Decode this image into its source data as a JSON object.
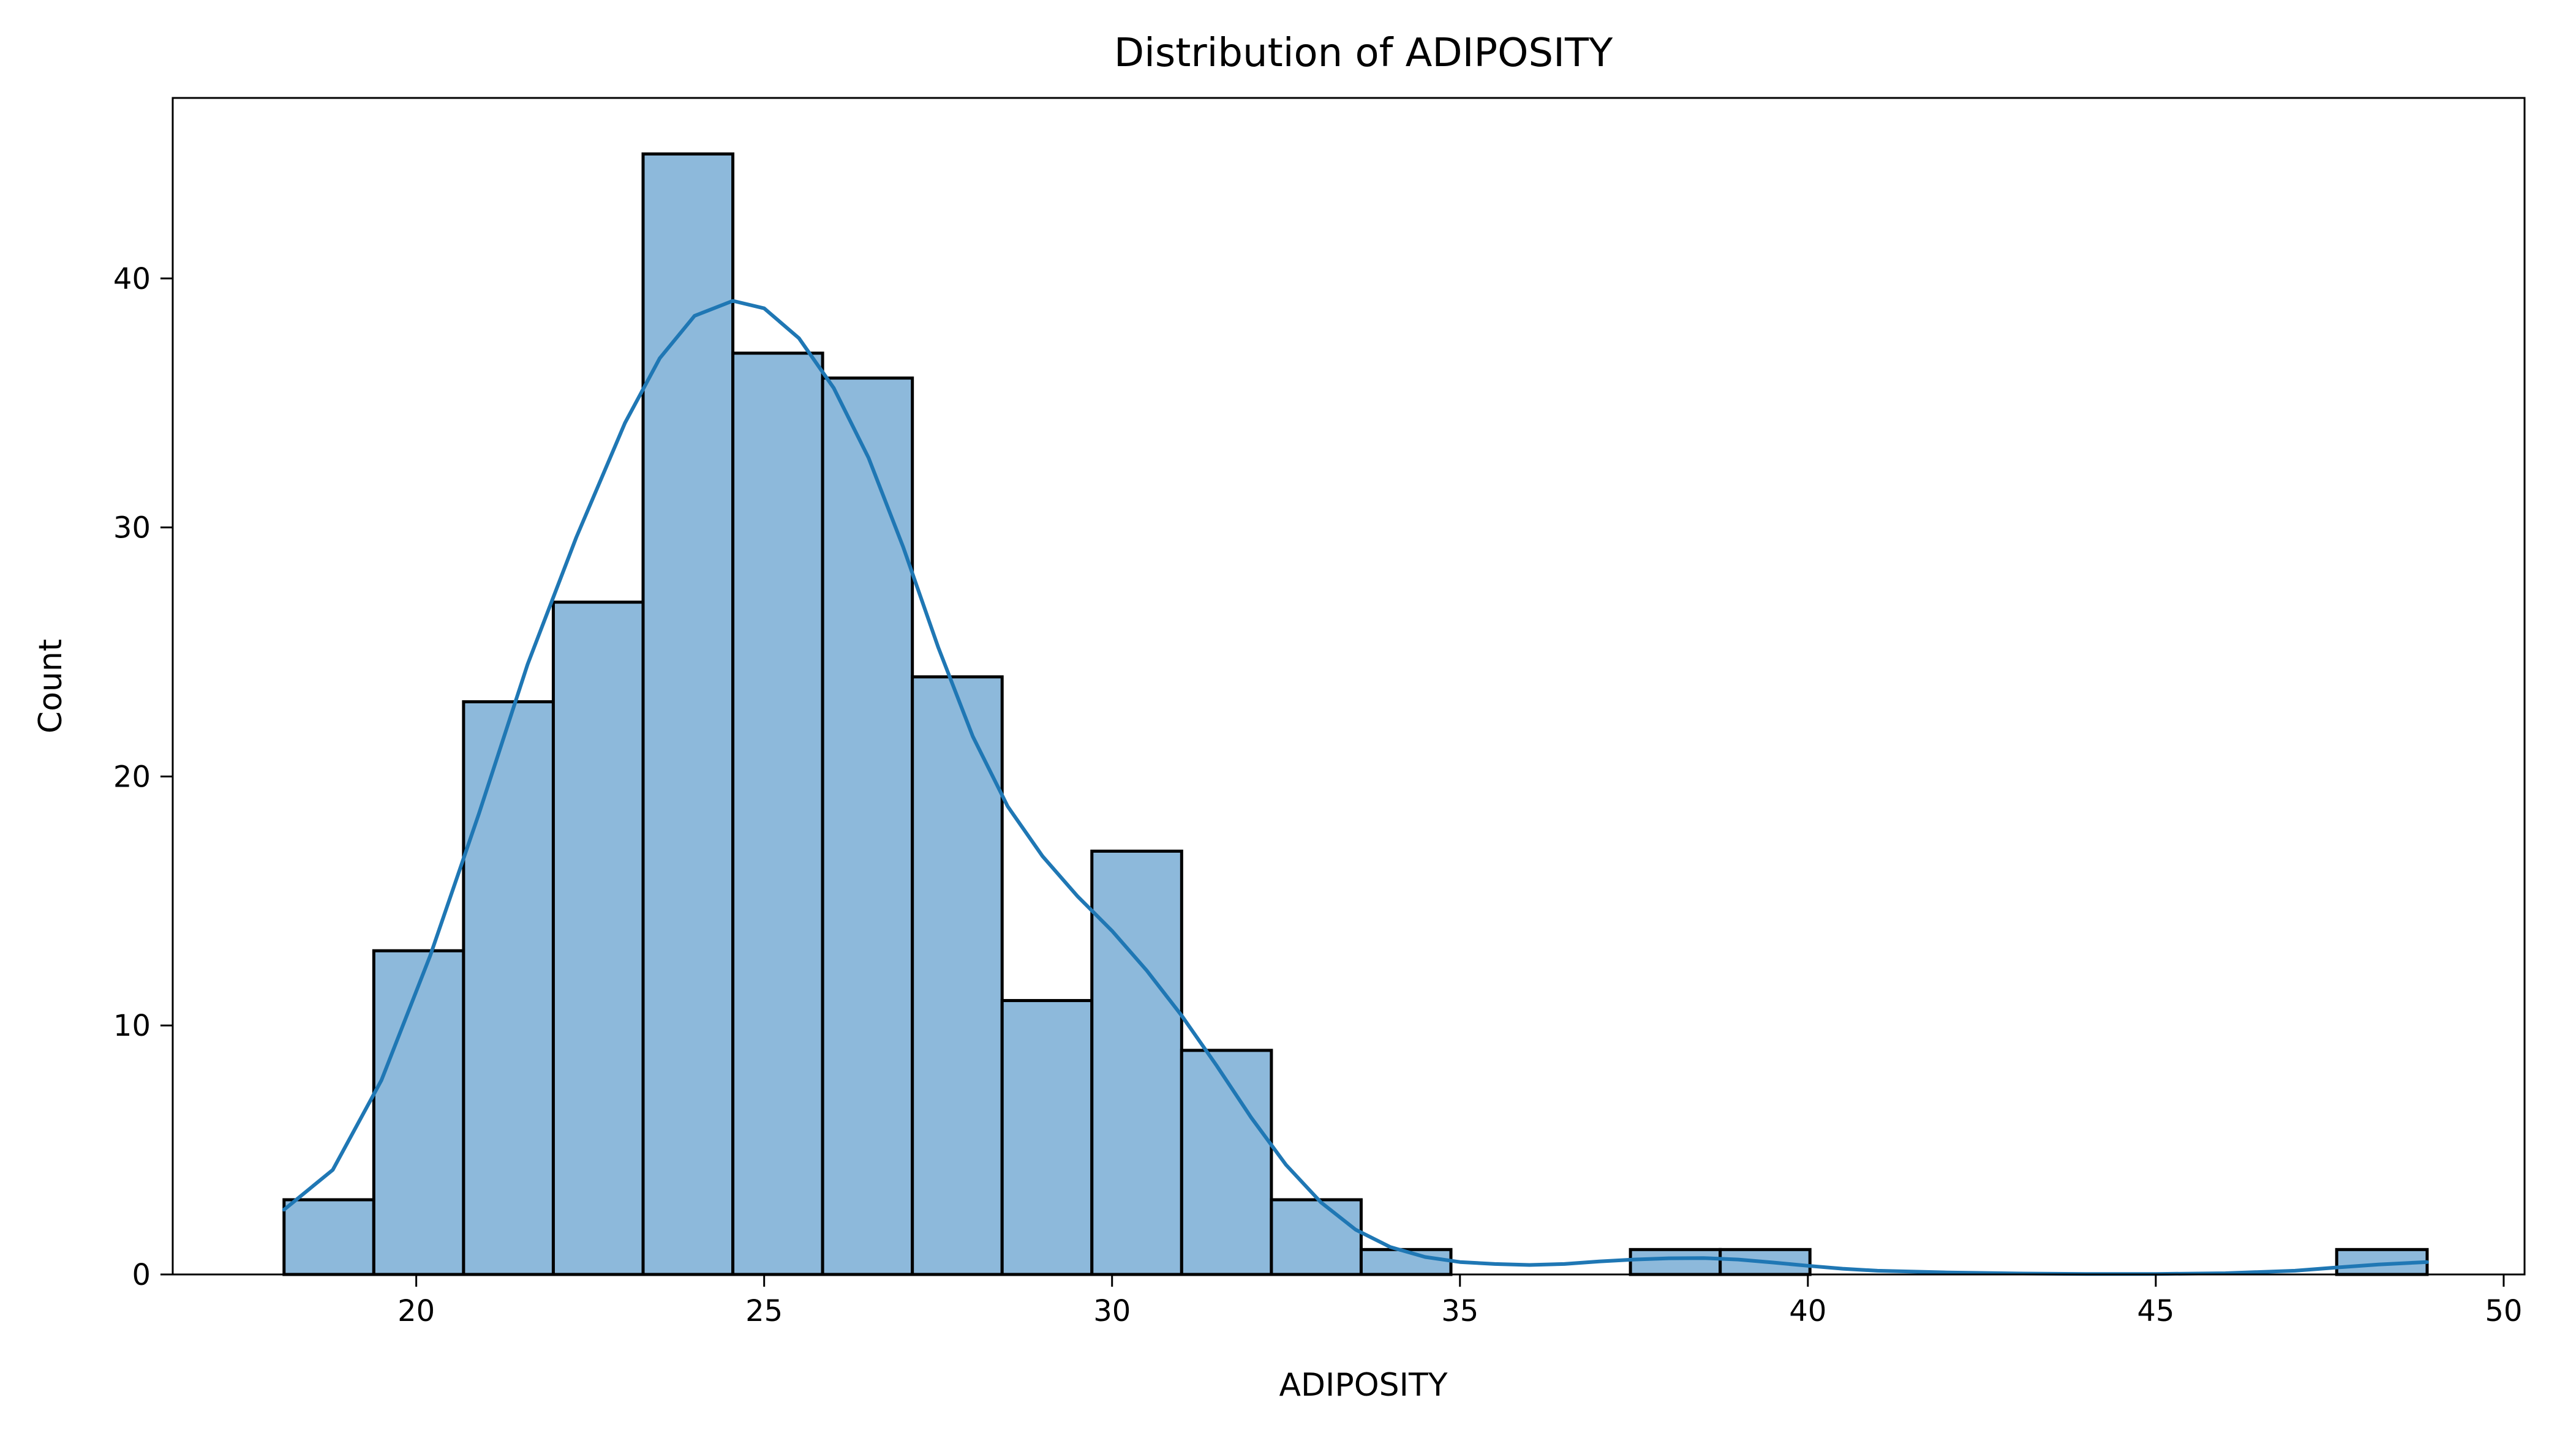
{
  "chart_data": {
    "type": "histogram",
    "title": "Distribution of ADIPOSITY",
    "xlabel": "ADIPOSITY",
    "ylabel": "Count",
    "xlim": [
      16.5,
      50.3
    ],
    "ylim": [
      0,
      47.25
    ],
    "x_ticks": [
      20,
      25,
      30,
      35,
      40,
      45,
      50
    ],
    "y_ticks": [
      0,
      10,
      20,
      30,
      40
    ],
    "grid": false,
    "bar_color": "#8db9db",
    "edge_color": "#000000",
    "kde_color": "#1f77b4",
    "bins": [
      {
        "x0": 18.1,
        "x1": 19.39,
        "count": 3
      },
      {
        "x0": 19.39,
        "x1": 20.68,
        "count": 13
      },
      {
        "x0": 20.68,
        "x1": 21.97,
        "count": 23
      },
      {
        "x0": 21.97,
        "x1": 23.26,
        "count": 27
      },
      {
        "x0": 23.26,
        "x1": 24.55,
        "count": 45
      },
      {
        "x0": 24.55,
        "x1": 25.84,
        "count": 37
      },
      {
        "x0": 25.84,
        "x1": 27.13,
        "count": 36
      },
      {
        "x0": 27.13,
        "x1": 28.42,
        "count": 24
      },
      {
        "x0": 28.42,
        "x1": 29.71,
        "count": 11
      },
      {
        "x0": 29.71,
        "x1": 31.0,
        "count": 17
      },
      {
        "x0": 31.0,
        "x1": 32.29,
        "count": 9
      },
      {
        "x0": 32.29,
        "x1": 33.58,
        "count": 3
      },
      {
        "x0": 33.58,
        "x1": 34.87,
        "count": 1
      },
      {
        "x0": 37.45,
        "x1": 38.74,
        "count": 1
      },
      {
        "x0": 38.74,
        "x1": 40.03,
        "count": 1
      },
      {
        "x0": 47.6,
        "x1": 48.9,
        "count": 1
      }
    ],
    "kde": [
      [
        18.1,
        2.6
      ],
      [
        18.8,
        4.2
      ],
      [
        19.5,
        7.8
      ],
      [
        20.2,
        12.8
      ],
      [
        20.9,
        18.5
      ],
      [
        21.6,
        24.5
      ],
      [
        22.3,
        29.6
      ],
      [
        23.0,
        34.2
      ],
      [
        23.5,
        36.8
      ],
      [
        24.0,
        38.5
      ],
      [
        24.55,
        39.1
      ],
      [
        25.0,
        38.8
      ],
      [
        25.5,
        37.6
      ],
      [
        26.0,
        35.6
      ],
      [
        26.5,
        32.8
      ],
      [
        27.0,
        29.2
      ],
      [
        27.5,
        25.2
      ],
      [
        28.0,
        21.6
      ],
      [
        28.5,
        18.8
      ],
      [
        29.0,
        16.8
      ],
      [
        29.5,
        15.2
      ],
      [
        30.0,
        13.8
      ],
      [
        30.5,
        12.2
      ],
      [
        31.0,
        10.4
      ],
      [
        31.5,
        8.4
      ],
      [
        32.0,
        6.3
      ],
      [
        32.5,
        4.4
      ],
      [
        33.0,
        2.9
      ],
      [
        33.5,
        1.8
      ],
      [
        34.0,
        1.1
      ],
      [
        34.5,
        0.7
      ],
      [
        35.0,
        0.5
      ],
      [
        35.5,
        0.42
      ],
      [
        36.0,
        0.38
      ],
      [
        36.5,
        0.42
      ],
      [
        37.0,
        0.52
      ],
      [
        37.5,
        0.6
      ],
      [
        38.0,
        0.65
      ],
      [
        38.5,
        0.66
      ],
      [
        39.0,
        0.6
      ],
      [
        39.5,
        0.48
      ],
      [
        40.0,
        0.35
      ],
      [
        40.5,
        0.23
      ],
      [
        41.0,
        0.15
      ],
      [
        42.0,
        0.08
      ],
      [
        43.0,
        0.04
      ],
      [
        44.0,
        0.02
      ],
      [
        45.0,
        0.02
      ],
      [
        46.0,
        0.05
      ],
      [
        47.0,
        0.15
      ],
      [
        47.6,
        0.28
      ],
      [
        48.2,
        0.4
      ],
      [
        48.9,
        0.5
      ]
    ]
  }
}
